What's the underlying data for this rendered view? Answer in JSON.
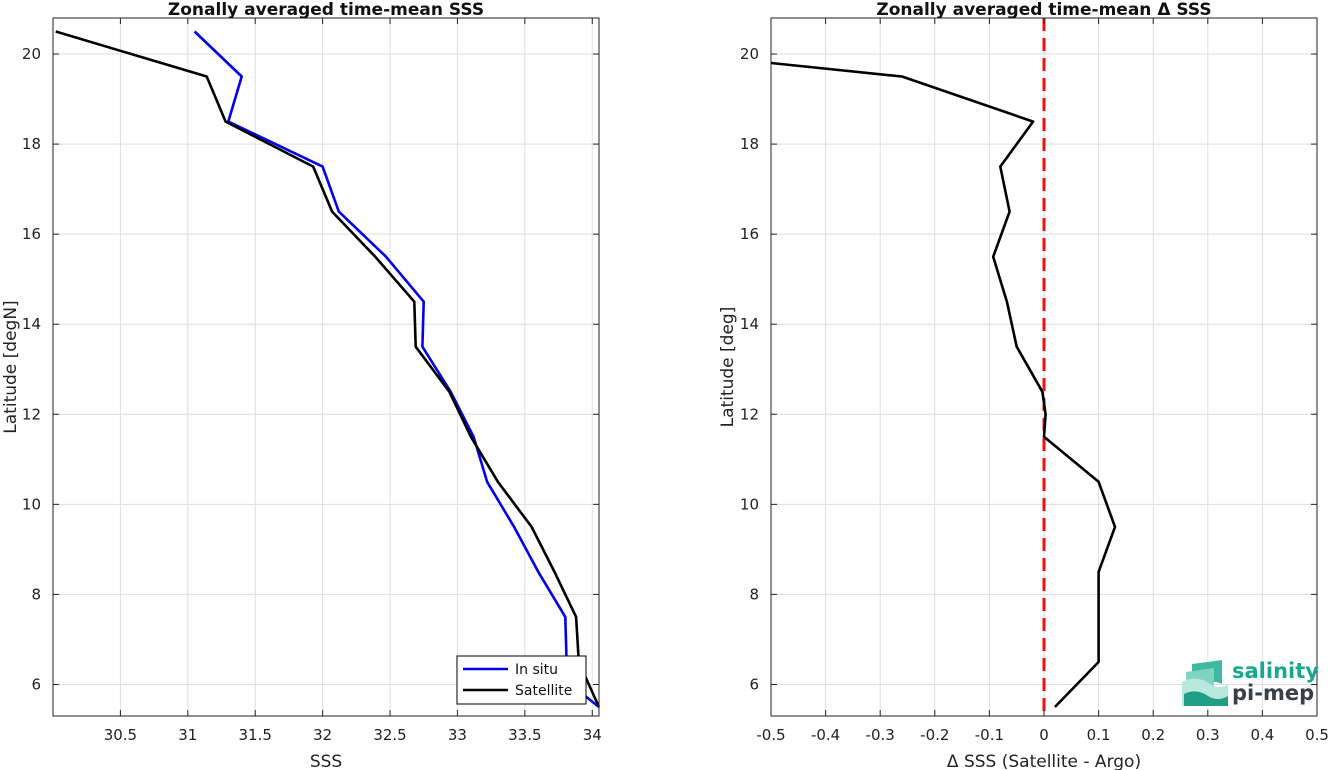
{
  "chart_data": [
    {
      "type": "line",
      "title": "Zonally averaged time-mean SSS",
      "xlabel": "SSS",
      "ylabel": "Latitude [degN]",
      "xlim": [
        30.0,
        34.05
      ],
      "ylim": [
        5.3,
        20.8
      ],
      "xticks": [
        30.5,
        31,
        31.5,
        32,
        32.5,
        33,
        33.5,
        34
      ],
      "xtick_labels": [
        "30.5",
        "31",
        "31.5",
        "32",
        "32.5",
        "33",
        "33.5",
        "34"
      ],
      "yticks": [
        6,
        8,
        10,
        12,
        14,
        16,
        18,
        20
      ],
      "ytick_labels": [
        "6",
        "8",
        "10",
        "12",
        "14",
        "16",
        "18",
        "20"
      ],
      "grid": true,
      "legend_position": "bottom-right",
      "series": [
        {
          "name": "In situ",
          "color": "#0000ee",
          "points": [
            [
              31.05,
              20.5
            ],
            [
              31.4,
              19.5
            ],
            [
              31.3,
              18.5
            ],
            [
              32.0,
              17.5
            ],
            [
              32.12,
              16.5
            ],
            [
              32.47,
              15.5
            ],
            [
              32.75,
              14.5
            ],
            [
              32.74,
              13.5
            ],
            [
              32.95,
              12.5
            ],
            [
              33.12,
              11.5
            ],
            [
              33.22,
              10.5
            ],
            [
              33.42,
              9.5
            ],
            [
              33.6,
              8.5
            ],
            [
              33.8,
              7.5
            ],
            [
              33.81,
              6.5
            ],
            [
              33.84,
              6.0
            ],
            [
              34.05,
              5.5
            ]
          ]
        },
        {
          "name": "Satellite",
          "color": "#000000",
          "points": [
            [
              30.02,
              20.5
            ],
            [
              31.14,
              19.5
            ],
            [
              31.28,
              18.5
            ],
            [
              31.93,
              17.5
            ],
            [
              32.07,
              16.5
            ],
            [
              32.39,
              15.5
            ],
            [
              32.68,
              14.5
            ],
            [
              32.69,
              13.5
            ],
            [
              32.94,
              12.5
            ],
            [
              33.1,
              11.5
            ],
            [
              33.3,
              10.5
            ],
            [
              33.55,
              9.5
            ],
            [
              33.72,
              8.5
            ],
            [
              33.88,
              7.5
            ],
            [
              33.9,
              6.5
            ],
            [
              34.05,
              5.5
            ]
          ]
        }
      ]
    },
    {
      "type": "line",
      "title": "Zonally averaged time-mean Δ SSS",
      "xlabel": "Δ SSS (Satellite - Argo)",
      "ylabel": "Latitude [deg]",
      "xlim": [
        -0.5,
        0.5
      ],
      "ylim": [
        5.3,
        20.8
      ],
      "xticks": [
        -0.5,
        -0.4,
        -0.3,
        -0.2,
        -0.1,
        0,
        0.1,
        0.2,
        0.3,
        0.4,
        0.5
      ],
      "xtick_labels": [
        "-0.5",
        "-0.4",
        "-0.3",
        "-0.2",
        "-0.1",
        "0",
        "0.1",
        "0.2",
        "0.3",
        "0.4",
        "0.5"
      ],
      "yticks": [
        6,
        8,
        10,
        12,
        14,
        16,
        18,
        20
      ],
      "ytick_labels": [
        "6",
        "8",
        "10",
        "12",
        "14",
        "16",
        "18",
        "20"
      ],
      "grid": true,
      "reference_line": {
        "x": 0,
        "color": "#ee1111",
        "style": "dashed"
      },
      "series": [
        {
          "color": "#000000",
          "points": [
            [
              -0.5,
              19.8
            ],
            [
              -0.26,
              19.5
            ],
            [
              -0.02,
              18.5
            ],
            [
              -0.08,
              17.5
            ],
            [
              -0.063,
              16.5
            ],
            [
              -0.093,
              15.5
            ],
            [
              -0.068,
              14.5
            ],
            [
              -0.05,
              13.5
            ],
            [
              -0.003,
              12.5
            ],
            [
              0.003,
              12.0
            ],
            [
              0.0,
              11.5
            ],
            [
              0.1,
              10.5
            ],
            [
              0.13,
              9.5
            ],
            [
              0.1,
              8.5
            ],
            [
              0.1,
              7.5
            ],
            [
              0.1,
              6.5
            ],
            [
              0.02,
              5.5
            ]
          ]
        }
      ]
    }
  ],
  "legend": {
    "insitu_label": "In situ",
    "satellite_label": "Satellite"
  },
  "logo": {
    "line1": "salinity",
    "line2": "pi-mep"
  }
}
